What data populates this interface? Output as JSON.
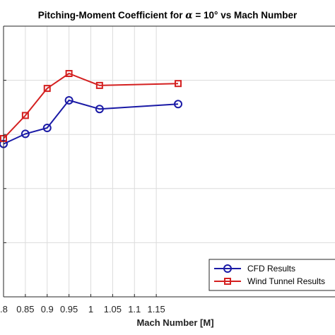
{
  "chart_data": {
    "type": "line",
    "title_prefix": "Pitching-Moment Coefficient for ",
    "title_symbol": "α",
    "title_suffix": " = 10° vs Mach Number",
    "xlabel": "Mach Number [M]",
    "ylabel": "",
    "xlim": [
      0.8,
      1.2
    ],
    "ylim": [
      0,
      1
    ],
    "xticks": [
      0.8,
      0.85,
      0.9,
      0.95,
      1,
      1.05,
      1.1,
      1.15
    ],
    "xtick_labels": [
      ".8",
      "0.85",
      "0.9",
      "0.95",
      "1",
      "1.05",
      "1.1",
      "1.15"
    ],
    "yticks": [
      0.2,
      0.4,
      0.6,
      0.8
    ],
    "grid": true,
    "legend_position": "bottom-right",
    "series": [
      {
        "name": "CFD Results",
        "color": "#1a1aa6",
        "marker": "circle",
        "x": [
          0.8,
          0.85,
          0.9,
          0.95,
          1.02,
          1.2
        ],
        "y": [
          0.565,
          0.602,
          0.624,
          0.726,
          0.694,
          0.712
        ]
      },
      {
        "name": "Wind Tunnel Results",
        "color": "#d42020",
        "marker": "square",
        "x": [
          0.8,
          0.85,
          0.9,
          0.95,
          1.02,
          1.2
        ],
        "y": [
          0.585,
          0.67,
          0.77,
          0.825,
          0.781,
          0.788
        ]
      }
    ]
  }
}
